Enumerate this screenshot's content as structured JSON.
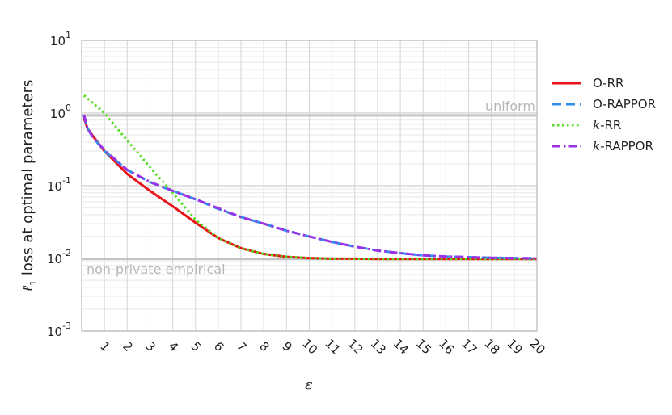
{
  "chart_data": {
    "type": "line",
    "xlabel": "ε",
    "ylabel": "loss at optimal parameters",
    "ylabel_prefix": "ℓ",
    "ylabel_sub": "1",
    "yscale": "log",
    "xlim": [
      0,
      20
    ],
    "ylim": [
      0.001,
      10
    ],
    "grid": true,
    "legend_position": "right",
    "x_ticks": [
      "1",
      "2",
      "3",
      "4",
      "5",
      "6",
      "7",
      "8",
      "9",
      "10",
      "11",
      "12",
      "13",
      "14",
      "15",
      "16",
      "17",
      "18",
      "19",
      "20"
    ],
    "y_ticks": [
      {
        "base": "10",
        "exp": "1",
        "value": 10
      },
      {
        "base": "10",
        "exp": "0",
        "value": 1
      },
      {
        "base": "10",
        "exp": "-1",
        "value": 0.1
      },
      {
        "base": "10",
        "exp": "-2",
        "value": 0.01
      },
      {
        "base": "10",
        "exp": "-3",
        "value": 0.001
      }
    ],
    "reference_lines": [
      {
        "label": "uniform",
        "value": 0.93
      },
      {
        "label": "non-private empirical",
        "value": 0.0098
      }
    ],
    "series": [
      {
        "name": "O-RR",
        "color": "#e8141a",
        "style": "solid",
        "x": [
          0.1,
          0.25,
          0.5,
          1,
          2,
          3,
          4,
          5,
          6,
          7,
          8,
          9,
          10,
          11,
          12,
          13,
          14,
          15,
          16,
          17,
          18,
          19,
          20
        ],
        "y": [
          0.85,
          0.62,
          0.48,
          0.3,
          0.145,
          0.085,
          0.052,
          0.031,
          0.019,
          0.0138,
          0.0115,
          0.0105,
          0.0101,
          0.0099,
          0.0099,
          0.0098,
          0.0098,
          0.0098,
          0.0098,
          0.0098,
          0.0098,
          0.0098,
          0.0098
        ]
      },
      {
        "name": "O-RAPPOR",
        "color": "#2f8fe6",
        "style": "dashed",
        "x": [
          0.1,
          0.25,
          0.5,
          1,
          2,
          3,
          4,
          5,
          6,
          7,
          8,
          9,
          10,
          11,
          12,
          13,
          14,
          15,
          16,
          17,
          18,
          19,
          20
        ],
        "y": [
          0.92,
          0.62,
          0.46,
          0.3,
          0.165,
          0.112,
          0.085,
          0.065,
          0.048,
          0.037,
          0.03,
          0.024,
          0.02,
          0.0168,
          0.0145,
          0.0128,
          0.0118,
          0.011,
          0.0106,
          0.0104,
          0.0102,
          0.0101,
          0.01
        ]
      },
      {
        "name": "k-RR",
        "color": "#55dd22",
        "style": "dotted",
        "x": [
          0.1,
          1,
          2,
          3,
          4,
          5,
          6,
          7,
          8,
          9,
          10,
          11,
          12,
          13,
          14,
          15,
          16,
          17,
          18,
          19,
          20
        ],
        "y": [
          1.75,
          1.0,
          0.42,
          0.18,
          0.08,
          0.034,
          0.019,
          0.0138,
          0.0115,
          0.0105,
          0.0101,
          0.0099,
          0.0099,
          0.0098,
          0.0098,
          0.0098,
          0.0098,
          0.0098,
          0.0098,
          0.0098,
          0.0098
        ]
      },
      {
        "name": "k-RAPPOR",
        "color": "#9a33e8",
        "style": "dashdot",
        "x": [
          0.1,
          0.25,
          0.5,
          1,
          2,
          3,
          4,
          5,
          6,
          7,
          8,
          9,
          10,
          11,
          12,
          13,
          14,
          15,
          16,
          17,
          18,
          19,
          20
        ],
        "y": [
          0.95,
          0.62,
          0.46,
          0.31,
          0.165,
          0.113,
          0.085,
          0.065,
          0.049,
          0.037,
          0.03,
          0.024,
          0.02,
          0.0168,
          0.0145,
          0.0128,
          0.0118,
          0.011,
          0.0106,
          0.0104,
          0.0102,
          0.0101,
          0.01
        ]
      }
    ]
  }
}
